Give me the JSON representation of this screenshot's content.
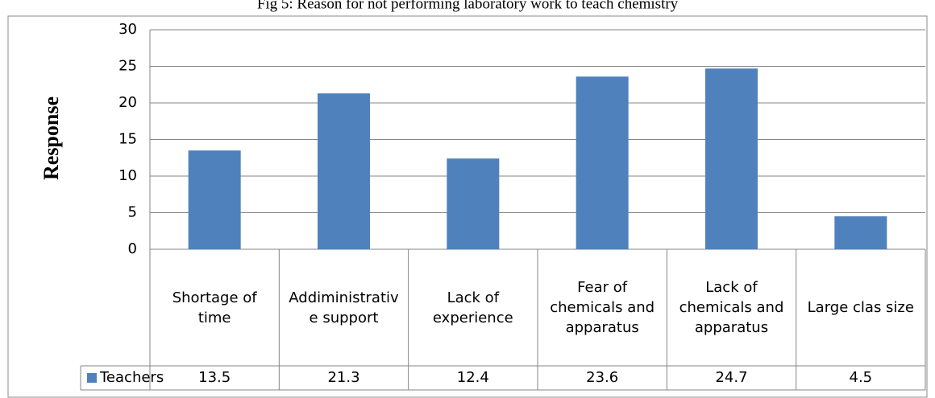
{
  "chart_data": {
    "type": "bar",
    "title": "Fig 5: Reason for not performing laboratory work to teach chemistry",
    "y_label": "Response",
    "categories": [
      "Shortage of time",
      "Addiministrative support",
      "Lack of experience",
      "Fear of chemicals and apparatus",
      "Lack of chemicals and apparatus",
      "Large clas size"
    ],
    "series": [
      {
        "name": "Teachers",
        "color": "#4f81bd",
        "values": [
          13.5,
          21.3,
          12.4,
          23.6,
          24.7,
          4.5
        ]
      }
    ],
    "ylim": [
      0,
      30
    ],
    "yticks": [
      0,
      5,
      10,
      15,
      20,
      25,
      30
    ],
    "grid": true,
    "legend": "table"
  }
}
